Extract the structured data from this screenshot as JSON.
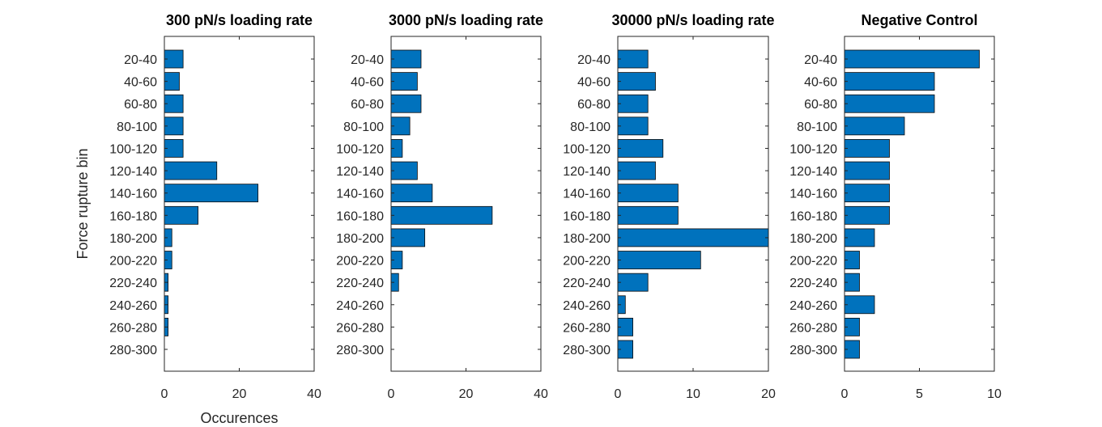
{
  "chart_data": [
    {
      "type": "bar",
      "orientation": "horizontal",
      "title": "300 pN/s loading rate",
      "xlabel": "Occurences",
      "ylabel": "Force rupture bin",
      "xlim": [
        0,
        40
      ],
      "xticks": [
        0,
        20,
        40
      ],
      "categories": [
        "20-40",
        "40-60",
        "60-80",
        "80-100",
        "100-120",
        "120-140",
        "140-160",
        "160-180",
        "180-200",
        "200-220",
        "220-240",
        "240-260",
        "260-280",
        "280-300"
      ],
      "values": [
        5,
        4,
        5,
        5,
        5,
        14,
        25,
        9,
        2,
        2,
        1,
        1,
        1,
        0
      ],
      "color": "#0072BD"
    },
    {
      "type": "bar",
      "orientation": "horizontal",
      "title": "3000 pN/s loading rate",
      "xlabel": "",
      "ylabel": "",
      "xlim": [
        0,
        40
      ],
      "xticks": [
        0,
        20,
        40
      ],
      "categories": [
        "20-40",
        "40-60",
        "60-80",
        "80-100",
        "100-120",
        "120-140",
        "140-160",
        "160-180",
        "180-200",
        "200-220",
        "220-240",
        "240-260",
        "260-280",
        "280-300"
      ],
      "values": [
        8,
        7,
        8,
        5,
        3,
        7,
        11,
        27,
        9,
        3,
        2,
        0,
        0,
        0
      ],
      "color": "#0072BD"
    },
    {
      "type": "bar",
      "orientation": "horizontal",
      "title": "30000 pN/s loading rate",
      "xlabel": "",
      "ylabel": "",
      "xlim": [
        0,
        20
      ],
      "xticks": [
        0,
        10,
        20
      ],
      "categories": [
        "20-40",
        "40-60",
        "60-80",
        "80-100",
        "100-120",
        "120-140",
        "140-160",
        "160-180",
        "180-200",
        "200-220",
        "220-240",
        "240-260",
        "260-280",
        "280-300"
      ],
      "values": [
        4,
        5,
        4,
        4,
        6,
        5,
        8,
        8,
        20,
        11,
        4,
        1,
        2,
        2
      ],
      "color": "#0072BD"
    },
    {
      "type": "bar",
      "orientation": "horizontal",
      "title": "Negative Control",
      "xlabel": "",
      "ylabel": "",
      "xlim": [
        0,
        10
      ],
      "xticks": [
        0,
        5,
        10
      ],
      "categories": [
        "20-40",
        "40-60",
        "60-80",
        "80-100",
        "100-120",
        "120-140",
        "140-160",
        "160-180",
        "180-200",
        "200-220",
        "220-240",
        "240-260",
        "260-280",
        "280-300"
      ],
      "values": [
        9,
        6,
        6,
        4,
        3,
        3,
        3,
        3,
        2,
        1,
        1,
        2,
        1,
        1
      ],
      "color": "#0072BD"
    }
  ]
}
